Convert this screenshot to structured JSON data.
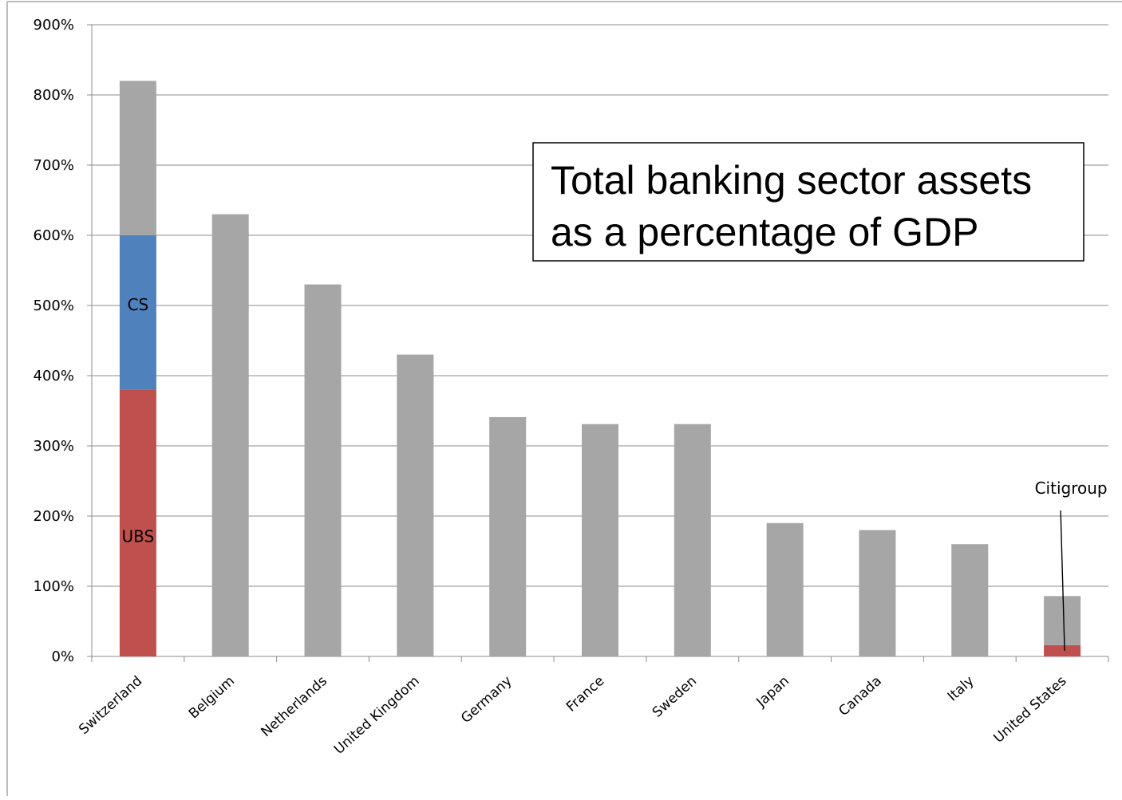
{
  "chart_data": {
    "type": "bar",
    "stacked": true,
    "title_lines": [
      "Total banking sector assets",
      "as a percentage of GDP"
    ],
    "xlabel": "",
    "ylabel": "",
    "ylim": [
      0,
      900
    ],
    "yticks": [
      0,
      100,
      200,
      300,
      400,
      500,
      600,
      700,
      800,
      900
    ],
    "ytick_labels": [
      "0%",
      "100%",
      "200%",
      "300%",
      "400%",
      "500%",
      "600%",
      "700%",
      "800%",
      "900%"
    ],
    "grid": true,
    "categories": [
      "Switzerland",
      "Belgium",
      "Netherlands",
      "United Kingdom",
      "Germany",
      "France",
      "Sweden",
      "Japan",
      "Canada",
      "Italy",
      "United States"
    ],
    "series": [
      {
        "label": "UBS",
        "color": "#c0504d",
        "values": [
          380,
          0,
          0,
          0,
          0,
          0,
          0,
          0,
          0,
          0,
          0
        ]
      },
      {
        "label": "CS",
        "color": "#4f81bd",
        "values": [
          220,
          0,
          0,
          0,
          0,
          0,
          0,
          0,
          0,
          0,
          0
        ]
      },
      {
        "label": "Citigroup",
        "color": "#c0504d",
        "values": [
          0,
          0,
          0,
          0,
          0,
          0,
          0,
          0,
          0,
          0,
          16
        ]
      },
      {
        "label": "",
        "color": "#a6a6a6",
        "values": [
          220,
          630,
          530,
          430,
          341,
          331,
          331,
          190,
          180,
          160,
          70
        ]
      }
    ]
  }
}
